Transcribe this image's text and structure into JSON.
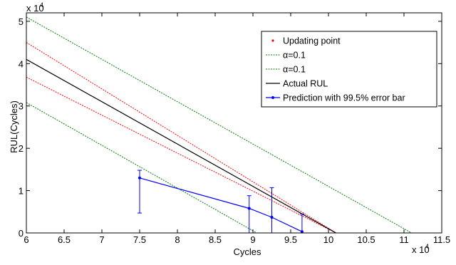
{
  "chart_data": {
    "type": "line",
    "xlabel": "Cycles",
    "ylabel": "RUL(Cycles)",
    "x_exponent_label": "x 10",
    "x_exponent_power": "4",
    "y_exponent_label": "x 10",
    "y_exponent_power": "4",
    "xlim": [
      6,
      11.5
    ],
    "ylim": [
      0,
      5.2
    ],
    "x_ticks": [
      "6",
      "6.5",
      "7",
      "7.5",
      "8",
      "8.5",
      "9",
      "9.5",
      "10",
      "10.5",
      "11",
      "11.5"
    ],
    "y_ticks": [
      "0",
      "1",
      "2",
      "3",
      "4",
      "5"
    ],
    "grid": false,
    "legend_position": "top-right",
    "series": [
      {
        "name": "Updating   point",
        "style": "dotted",
        "color": "#ff0000",
        "x": [
          6,
          10.1
        ],
        "y": [
          4.5,
          0
        ]
      },
      {
        "name": "",
        "style": "dotted",
        "color": "#ff0000",
        "x": [
          6,
          10.1
        ],
        "y": [
          3.68,
          0
        ]
      },
      {
        "name": "α=0.1",
        "style": "dotted",
        "color": "#008000",
        "x": [
          6,
          11.1
        ],
        "y": [
          5.1,
          0
        ]
      },
      {
        "name": "α=0.1",
        "style": "dotted",
        "color": "#008000",
        "x": [
          6,
          9.05
        ],
        "y": [
          3.08,
          0
        ]
      },
      {
        "name": "Actual   RUL",
        "style": "solid",
        "color": "#000000",
        "x": [
          6,
          10.1
        ],
        "y": [
          4.1,
          0
        ]
      },
      {
        "name": "Prediction with 99.5% error bar",
        "style": "solid-marker",
        "color": "#0000ff",
        "x": [
          7.5,
          8.95,
          9.25,
          9.65
        ],
        "y": [
          1.3,
          0.58,
          0.37,
          0.03
        ],
        "error_low": [
          0.47,
          0.0,
          0.0,
          0.0
        ],
        "error_high": [
          1.48,
          0.88,
          1.07,
          0.45
        ]
      }
    ],
    "legend": [
      {
        "label": "Updating   point",
        "swatch": "dot",
        "color": "#ff0000"
      },
      {
        "label": "α=0.1",
        "swatch": "dotted-line",
        "color": "#008000"
      },
      {
        "label": "α=0.1",
        "swatch": "dotted-line",
        "color": "#008000"
      },
      {
        "label": "Actual   RUL",
        "swatch": "line",
        "color": "#000000"
      },
      {
        "label": "Prediction with 99.5% error bar",
        "swatch": "line-marker",
        "color": "#0000ff"
      }
    ]
  }
}
